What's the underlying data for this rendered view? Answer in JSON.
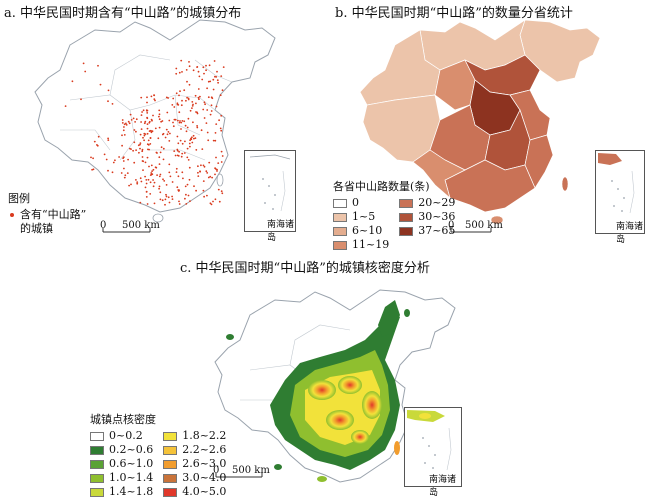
{
  "panel_a": {
    "title": "a. 中华民国时期含有“中山路”的城镇分布",
    "legend_title": "图例",
    "legend_item_line1": "含有“中山路”",
    "legend_item_line2": "的城镇",
    "scale_zero": "0",
    "scale_label": "500 km",
    "inset_label": "南海诸岛",
    "point_color": "#d93a1e"
  },
  "panel_b": {
    "title": "b. 中华民国时期“中山路”的数量分省统计",
    "legend_title": "各省中山路数量(条)",
    "classes": [
      {
        "label": "0",
        "color": "#ffffff"
      },
      {
        "label": "1~5",
        "color": "#ecc4aa"
      },
      {
        "label": "6~10",
        "color": "#e4ad8f"
      },
      {
        "label": "11~19",
        "color": "#d98e6e"
      },
      {
        "label": "20~29",
        "color": "#c97256"
      },
      {
        "label": "30~36",
        "color": "#b0533a"
      },
      {
        "label": "37~65",
        "color": "#8d3320"
      }
    ],
    "scale_zero": "0",
    "scale_label": "500 km",
    "inset_label": "南海诸岛"
  },
  "panel_c": {
    "title": "c. 中华民国时期“中山路”的城镇核密度分析",
    "legend_title": "城镇点核密度",
    "classes": [
      {
        "label": "0~0.2",
        "color": "#ffffff"
      },
      {
        "label": "0.2~0.6",
        "color": "#2f7d32"
      },
      {
        "label": "0.6~1.0",
        "color": "#5aa235"
      },
      {
        "label": "1.0~1.4",
        "color": "#8fbf2f"
      },
      {
        "label": "1.4~1.8",
        "color": "#c9d93a"
      },
      {
        "label": "1.8~2.2",
        "color": "#f2e23a"
      },
      {
        "label": "2.2~2.6",
        "color": "#f5c33a"
      },
      {
        "label": "2.6~3.0",
        "color": "#f29d2e"
      },
      {
        "label": "3.0~4.0",
        "color": "#c9733a"
      },
      {
        "label": "4.0~5.0",
        "color": "#e0382a"
      }
    ],
    "scale_zero": "0",
    "scale_label": "500 km",
    "inset_label": "南海诸岛"
  }
}
